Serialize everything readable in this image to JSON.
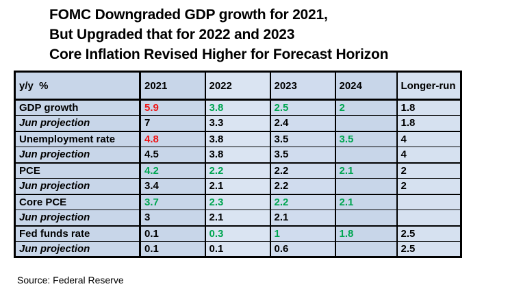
{
  "title": {
    "lines": [
      "FOMC Downgraded GDP growth for 2021,",
      "But Upgraded that for 2022 and 2023",
      "Core Inflation Revised Higher for Forecast Horizon"
    ]
  },
  "source": "Source: Federal Reserve",
  "colors": {
    "red": "#EE1414",
    "green": "#00A651",
    "text": "#000000",
    "border": "#000000",
    "cell_base": "#C8D6E9",
    "cell_2022": "#DAE4F2",
    "cell_2023": "#D0DCEE",
    "cell_longer_run": "#D6E1F0"
  },
  "table": {
    "columns": [
      {
        "label": "y/y  %"
      },
      {
        "label": "2021"
      },
      {
        "label": "2022"
      },
      {
        "label": "2023"
      },
      {
        "label": "2024"
      },
      {
        "label": "Longer-run"
      }
    ],
    "column_shades": [
      "cell_base",
      "cell_base",
      "cell_2022",
      "cell_2023",
      "cell_base",
      "cell_longer_run"
    ],
    "rows": [
      {
        "label": "GDP growth",
        "style": "category",
        "values": [
          {
            "text": "5.9",
            "color": "red"
          },
          {
            "text": "3.8",
            "color": "green"
          },
          {
            "text": "2.5",
            "color": "green"
          },
          {
            "text": "2",
            "color": "green"
          },
          {
            "text": "1.8",
            "color": "text"
          }
        ]
      },
      {
        "label": "Jun projection",
        "style": "projection",
        "values": [
          {
            "text": "7",
            "color": "text"
          },
          {
            "text": "3.3",
            "color": "text"
          },
          {
            "text": "2.4",
            "color": "text"
          },
          {
            "text": "",
            "color": "text"
          },
          {
            "text": "1.8",
            "color": "text"
          }
        ]
      },
      {
        "label": "Unemployment rate",
        "style": "category",
        "values": [
          {
            "text": "4.8",
            "color": "red"
          },
          {
            "text": "3.8",
            "color": "text"
          },
          {
            "text": "3.5",
            "color": "text"
          },
          {
            "text": "3.5",
            "color": "green"
          },
          {
            "text": "4",
            "color": "text"
          }
        ]
      },
      {
        "label": "Jun projection",
        "style": "projection",
        "values": [
          {
            "text": "4.5",
            "color": "text"
          },
          {
            "text": "3.8",
            "color": "text"
          },
          {
            "text": "3.5",
            "color": "text"
          },
          {
            "text": "",
            "color": "text"
          },
          {
            "text": "4",
            "color": "text"
          }
        ]
      },
      {
        "label": "PCE",
        "style": "category",
        "values": [
          {
            "text": "4.2",
            "color": "green"
          },
          {
            "text": "2.2",
            "color": "green"
          },
          {
            "text": "2.2",
            "color": "text"
          },
          {
            "text": "2.1",
            "color": "green"
          },
          {
            "text": "2",
            "color": "text"
          }
        ]
      },
      {
        "label": "Jun projection",
        "style": "projection",
        "values": [
          {
            "text": "3.4",
            "color": "text"
          },
          {
            "text": "2.1",
            "color": "text"
          },
          {
            "text": "2.2",
            "color": "text"
          },
          {
            "text": "",
            "color": "text"
          },
          {
            "text": "2",
            "color": "text"
          }
        ]
      },
      {
        "label": "Core PCE",
        "style": "category",
        "values": [
          {
            "text": "3.7",
            "color": "green"
          },
          {
            "text": "2.3",
            "color": "green"
          },
          {
            "text": "2.2",
            "color": "green"
          },
          {
            "text": "2.1",
            "color": "green"
          },
          {
            "text": "",
            "color": "text"
          }
        ]
      },
      {
        "label": "Jun projection",
        "style": "projection",
        "values": [
          {
            "text": "3",
            "color": "text"
          },
          {
            "text": "2.1",
            "color": "text"
          },
          {
            "text": "2.1",
            "color": "text"
          },
          {
            "text": "",
            "color": "text"
          },
          {
            "text": "",
            "color": "text"
          }
        ]
      },
      {
        "label": "Fed funds rate",
        "style": "category",
        "values": [
          {
            "text": "0.1",
            "color": "text"
          },
          {
            "text": "0.3",
            "color": "green"
          },
          {
            "text": "1",
            "color": "green"
          },
          {
            "text": "1.8",
            "color": "green"
          },
          {
            "text": "2.5",
            "color": "text"
          }
        ]
      },
      {
        "label": "Jun projection",
        "style": "projection",
        "values": [
          {
            "text": "0.1",
            "color": "text"
          },
          {
            "text": "0.1",
            "color": "text"
          },
          {
            "text": "0.6",
            "color": "text"
          },
          {
            "text": "",
            "color": "text"
          },
          {
            "text": "2.5",
            "color": "text"
          }
        ]
      }
    ]
  },
  "chart_data": {
    "type": "table",
    "title": "FOMC Downgraded GDP growth for 2021, But Upgraded that for 2022 and 2023; Core Inflation Revised Higher for Forecast Horizon",
    "columns": [
      "y/y %",
      "2021",
      "2022",
      "2023",
      "2024",
      "Longer-run"
    ],
    "rows": [
      [
        "GDP growth",
        "5.9",
        "3.8",
        "2.5",
        "2",
        "1.8"
      ],
      [
        "Jun projection",
        "7",
        "3.3",
        "2.4",
        "",
        "1.8"
      ],
      [
        "Unemployment rate",
        "4.8",
        "3.8",
        "3.5",
        "3.5",
        "4"
      ],
      [
        "Jun projection",
        "4.5",
        "3.8",
        "3.5",
        "",
        "4"
      ],
      [
        "PCE",
        "4.2",
        "2.2",
        "2.2",
        "2.1",
        "2"
      ],
      [
        "Jun projection",
        "3.4",
        "2.1",
        "2.2",
        "",
        "2"
      ],
      [
        "Core PCE",
        "3.7",
        "2.3",
        "2.2",
        "2.1",
        ""
      ],
      [
        "Jun projection",
        "3",
        "2.1",
        "2.1",
        "",
        ""
      ],
      [
        "Fed funds rate",
        "0.1",
        "0.3",
        "1",
        "1.8",
        "2.5"
      ],
      [
        "Jun projection",
        "0.1",
        "0.1",
        "0.6",
        "",
        "2.5"
      ]
    ],
    "source": "Federal Reserve"
  }
}
